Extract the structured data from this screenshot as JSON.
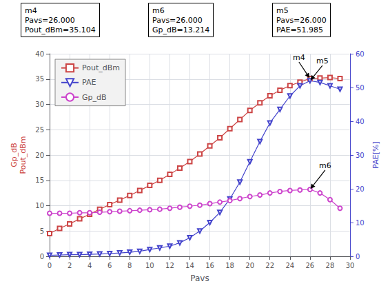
{
  "chart_data": {
    "type": "line",
    "xlabel": "Pavs",
    "ylabel": "Gp_dB\nPout_dBm",
    "y2label": "PAE[%]",
    "x": [
      0,
      1,
      2,
      3,
      4,
      5,
      6,
      7,
      8,
      9,
      10,
      11,
      12,
      13,
      14,
      15,
      16,
      17,
      18,
      19,
      20,
      21,
      22,
      23,
      24,
      25,
      26,
      27,
      28,
      29
    ],
    "xlim": [
      0,
      30
    ],
    "xticks": [
      0,
      2,
      4,
      6,
      8,
      10,
      12,
      14,
      16,
      18,
      20,
      22,
      24,
      26,
      28,
      30
    ],
    "ylim": [
      0,
      40
    ],
    "yticks": [
      0,
      5,
      10,
      15,
      20,
      25,
      30,
      35,
      40
    ],
    "y2lim": [
      0,
      60
    ],
    "y2ticks": [
      0,
      10,
      20,
      30,
      40,
      50,
      60
    ],
    "grid": true,
    "legend": "upper left",
    "series": [
      {
        "name": "Pout_dBm",
        "color": "#cc4444",
        "marker": "square",
        "values": [
          4.5,
          5.5,
          6.4,
          7.4,
          8.3,
          9.3,
          10.2,
          11.1,
          12.0,
          13.0,
          14.0,
          15.0,
          16.2,
          17.4,
          18.7,
          20.2,
          21.8,
          23.4,
          25.2,
          27.0,
          28.8,
          30.3,
          31.7,
          32.8,
          33.7,
          34.4,
          35.1,
          35.2,
          35.3,
          35.1
        ]
      },
      {
        "name": "PAE",
        "color": "#4444cc",
        "marker": "triangle_down",
        "axis": "y2",
        "values": [
          0.3,
          0.4,
          0.5,
          0.5,
          0.6,
          0.7,
          0.8,
          1.0,
          1.2,
          1.5,
          2.0,
          2.5,
          3.0,
          4.0,
          5.5,
          7.5,
          10.0,
          13.0,
          17.0,
          22.0,
          28.0,
          34.0,
          39.5,
          43.5,
          47.5,
          50.5,
          52.0,
          51.5,
          50.5,
          49.5
        ]
      },
      {
        "name": "Gp_dB",
        "color": "#cc44cc",
        "marker": "circle",
        "values": [
          8.5,
          8.5,
          8.5,
          8.6,
          8.6,
          8.7,
          8.8,
          8.9,
          9.0,
          9.1,
          9.2,
          9.3,
          9.5,
          9.7,
          9.9,
          10.1,
          10.4,
          10.7,
          11.0,
          11.4,
          11.8,
          12.1,
          12.5,
          12.8,
          13.0,
          13.1,
          13.2,
          12.5,
          11.2,
          9.5
        ]
      }
    ],
    "annotations": [
      {
        "text": "m4",
        "x": 26,
        "y": 35.1
      },
      {
        "text": "m6",
        "x": 26,
        "y": 13.2
      },
      {
        "text": "m5",
        "x": 26,
        "y": 52.0,
        "axis": "y2"
      }
    ],
    "annotation_boxes": [
      "m4\nPavs=26.000\nPout_dBm=35.104",
      "m6\nPavs=26.000\nGp_dB=13.214",
      "m5\nPavs=26.000\nPAE=51.985"
    ]
  }
}
